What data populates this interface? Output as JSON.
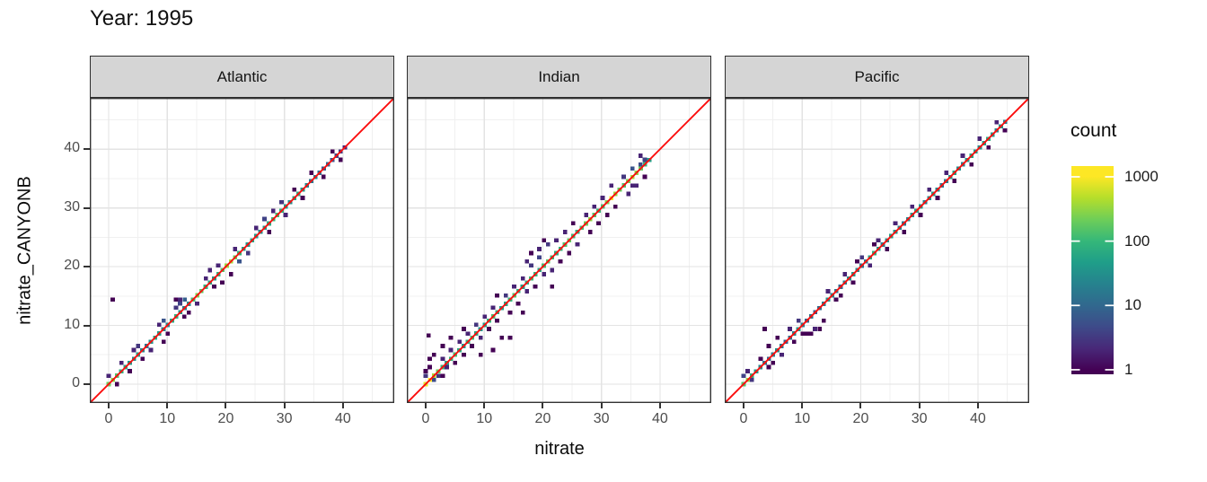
{
  "title": "Year: 1995",
  "facets": [
    "Atlantic",
    "Indian",
    "Pacific"
  ],
  "axes": {
    "x_label": "nitrate",
    "y_label": "nitrate_CANYONB",
    "x_tick_labels": [
      "0",
      "10",
      "20",
      "30",
      "40"
    ],
    "y_tick_labels": [
      "0",
      "10",
      "20",
      "30",
      "40"
    ],
    "x_tick_values": [
      0,
      10,
      20,
      30,
      40
    ],
    "y_tick_values": [
      0,
      10,
      20,
      30,
      40
    ],
    "minor_tick_values": [
      5,
      15,
      25,
      35,
      45
    ]
  },
  "legend": {
    "title": "count",
    "tick_labels": [
      "1000",
      "100",
      "10",
      "1"
    ],
    "tick_values": [
      1000,
      100,
      10,
      1
    ]
  },
  "colors": {
    "reference_line": "#fb0d0d",
    "strip_fill": "#d5d5d5",
    "strip_border": "#2e2e2e",
    "panel_border": "#333333",
    "grid_major": "#e3e3e3",
    "grid_minor": "#f0f0f0",
    "axis_text": "#4d4d4d",
    "viridis": [
      "#440154",
      "#482878",
      "#3e4a89",
      "#31688e",
      "#26828e",
      "#1f9e89",
      "#35b779",
      "#6ece58",
      "#b5de2b",
      "#fde725"
    ]
  },
  "chart_data": {
    "type": "heatmap",
    "subtype": "2d-binned scatter (geom_bin2d) with identity reference line, faceted by ocean",
    "title": "Year: 1995",
    "xlabel": "nitrate",
    "ylabel": "nitrate_CANYONB",
    "xlim": [
      -3.22,
      48.75
    ],
    "ylim": [
      -3.22,
      48.75
    ],
    "x_ticks": [
      0,
      10,
      20,
      30,
      40
    ],
    "y_ticks": [
      0,
      10,
      20,
      30,
      40
    ],
    "grid": true,
    "legend_position": "right",
    "bin_width": 0.72,
    "color_scale": {
      "palette": "viridis",
      "trans": "log10",
      "domain": [
        1,
        1000
      ],
      "title": "count"
    },
    "reference_line": {
      "type": "identity y=x",
      "color": "red"
    },
    "facets": [
      {
        "name": "Atlantic",
        "diag_start": 0,
        "diag_step": 0.72,
        "diag_counts": [
          200,
          300,
          150,
          80,
          60,
          40,
          30,
          50,
          25,
          15,
          35,
          60,
          45,
          20,
          25,
          70,
          90,
          40,
          18,
          30,
          120,
          250,
          180,
          90,
          60,
          40,
          80,
          150,
          350,
          400,
          200,
          90,
          50,
          35,
          60,
          45,
          30,
          40,
          70,
          100,
          120,
          80,
          45,
          30,
          55,
          70,
          40,
          25,
          15,
          20,
          12,
          8,
          10,
          6,
          4,
          3,
          2
        ],
        "scatter_bins": [
          [
            0,
            1.4,
            2
          ],
          [
            1.4,
            0,
            1
          ],
          [
            0.7,
            14.4,
            1
          ],
          [
            2.2,
            3.6,
            2
          ],
          [
            3.6,
            2.2,
            1
          ],
          [
            4.3,
            5.8,
            2
          ],
          [
            5,
            6.5,
            3
          ],
          [
            5.8,
            4.3,
            1
          ],
          [
            7.2,
            5.8,
            2
          ],
          [
            8.6,
            10.1,
            2
          ],
          [
            9.4,
            7.2,
            1
          ],
          [
            9.4,
            10.8,
            6
          ],
          [
            10.1,
            8.6,
            1
          ],
          [
            11.5,
            13,
            3
          ],
          [
            11.5,
            14.4,
            1
          ],
          [
            12.2,
            13.7,
            4
          ],
          [
            12.2,
            14.4,
            2
          ],
          [
            12.9,
            11.5,
            1
          ],
          [
            13,
            14.4,
            8
          ],
          [
            13.7,
            12.2,
            1
          ],
          [
            15.1,
            13.7,
            2
          ],
          [
            16.6,
            18,
            2
          ],
          [
            17.3,
            19.4,
            2
          ],
          [
            18,
            16.6,
            1
          ],
          [
            18.7,
            20.2,
            2
          ],
          [
            19.4,
            17.3,
            1
          ],
          [
            20.9,
            18.7,
            1
          ],
          [
            21.6,
            23,
            2
          ],
          [
            22.3,
            20.9,
            6
          ],
          [
            23.8,
            22.3,
            3
          ],
          [
            25.2,
            26.6,
            2
          ],
          [
            26.6,
            28.1,
            4
          ],
          [
            27.4,
            25.9,
            1
          ],
          [
            28.1,
            29.5,
            2
          ],
          [
            29.5,
            31,
            3
          ],
          [
            30.2,
            28.8,
            2
          ],
          [
            31.7,
            33.1,
            1
          ],
          [
            33.1,
            31.7,
            1
          ],
          [
            34.6,
            36,
            1
          ],
          [
            36.7,
            35.3,
            1
          ],
          [
            38.2,
            39.6,
            1
          ],
          [
            39.6,
            38.2,
            1
          ]
        ]
      },
      {
        "name": "Indian",
        "diag_start": 0,
        "diag_step": 0.72,
        "diag_counts": [
          800,
          1000,
          400,
          200,
          100,
          60,
          90,
          120,
          70,
          40,
          80,
          110,
          60,
          35,
          50,
          90,
          130,
          70,
          45,
          60,
          100,
          150,
          80,
          50,
          70,
          110,
          90,
          60,
          120,
          160,
          100,
          70,
          90,
          140,
          180,
          110,
          80,
          120,
          200,
          300,
          150,
          100,
          130,
          250,
          900,
          350,
          200,
          150,
          250,
          400,
          300,
          200,
          100,
          50
        ],
        "scatter_bins": [
          [
            0,
            1.4,
            3
          ],
          [
            0,
            2.2,
            1
          ],
          [
            0.7,
            2.9,
            1
          ],
          [
            1.4,
            0.7,
            5
          ],
          [
            2.2,
            1.4,
            3
          ],
          [
            2.9,
            1.4,
            1
          ],
          [
            0.7,
            4.3,
            1
          ],
          [
            1.4,
            5,
            1
          ],
          [
            0.5,
            8.3,
            1
          ],
          [
            2.9,
            4.3,
            2
          ],
          [
            3.6,
            2.9,
            2
          ],
          [
            2.9,
            6.5,
            1
          ],
          [
            4.3,
            5.8,
            2
          ],
          [
            4.3,
            7.9,
            1
          ],
          [
            5,
            3.6,
            1
          ],
          [
            5.8,
            7.2,
            2
          ],
          [
            6.5,
            5,
            1
          ],
          [
            6.5,
            9.4,
            1
          ],
          [
            7.2,
            8.6,
            2
          ],
          [
            7.9,
            6.5,
            1
          ],
          [
            8.6,
            10.1,
            3
          ],
          [
            9.4,
            7.9,
            2
          ],
          [
            9.4,
            5,
            1
          ],
          [
            10.1,
            11.5,
            2
          ],
          [
            10.8,
            9.4,
            1
          ],
          [
            11.5,
            5.8,
            1
          ],
          [
            11.5,
            13,
            2
          ],
          [
            12.2,
            10.8,
            1
          ],
          [
            12.2,
            15.1,
            1
          ],
          [
            13,
            7.9,
            1
          ],
          [
            13.7,
            15.1,
            3
          ],
          [
            14.4,
            7.9,
            1
          ],
          [
            14.4,
            12.2,
            1
          ],
          [
            15.1,
            16.6,
            2
          ],
          [
            15.8,
            13.7,
            1
          ],
          [
            16.6,
            18,
            2
          ],
          [
            16.6,
            12.2,
            1
          ],
          [
            17.3,
            15.8,
            2
          ],
          [
            17.3,
            20.9,
            2
          ],
          [
            18,
            20.2,
            3
          ],
          [
            18,
            22.3,
            1
          ],
          [
            18.7,
            16.6,
            1
          ],
          [
            19.4,
            21.6,
            4
          ],
          [
            19.4,
            23,
            2
          ],
          [
            20.2,
            18.7,
            2
          ],
          [
            20.2,
            24.5,
            1
          ],
          [
            20.9,
            23.8,
            3
          ],
          [
            21.6,
            19.4,
            2
          ],
          [
            21.6,
            16.6,
            1
          ],
          [
            22.3,
            24.5,
            2
          ],
          [
            23,
            20.9,
            1
          ],
          [
            23.8,
            25.9,
            2
          ],
          [
            24.5,
            22.3,
            1
          ],
          [
            25.2,
            27.4,
            1
          ],
          [
            25.9,
            23.8,
            2
          ],
          [
            27.4,
            28.8,
            2
          ],
          [
            28.1,
            25.9,
            1
          ],
          [
            28.8,
            30.2,
            2
          ],
          [
            29.5,
            27.4,
            1
          ],
          [
            30.2,
            31.7,
            2
          ],
          [
            31,
            28.8,
            1
          ],
          [
            31.7,
            33.8,
            2
          ],
          [
            32.4,
            30.2,
            1
          ],
          [
            33.8,
            35.3,
            3
          ],
          [
            34.6,
            32.4,
            2
          ],
          [
            35.3,
            36.7,
            6
          ],
          [
            35.3,
            33.8,
            2
          ],
          [
            36,
            33.8,
            2
          ],
          [
            36.7,
            38.9,
            2
          ],
          [
            36.7,
            37.4,
            5
          ],
          [
            37.4,
            35.3,
            1
          ],
          [
            37.4,
            38.2,
            4
          ]
        ]
      },
      {
        "name": "Pacific",
        "diag_start": 0,
        "diag_step": 0.72,
        "diag_counts": [
          150,
          300,
          80,
          40,
          25,
          15,
          10,
          20,
          30,
          15,
          8,
          12,
          25,
          40,
          20,
          10,
          15,
          8,
          12,
          20,
          35,
          25,
          15,
          10,
          20,
          30,
          40,
          25,
          15,
          20,
          60,
          80,
          40,
          20,
          30,
          50,
          35,
          20,
          15,
          25,
          40,
          60,
          35,
          20,
          30,
          45,
          25,
          15,
          20,
          35,
          55,
          30,
          20,
          40,
          60,
          45,
          30,
          50,
          70,
          40,
          25,
          35,
          20
        ],
        "scatter_bins": [
          [
            0,
            1.4,
            4
          ],
          [
            0.7,
            2.2,
            2
          ],
          [
            1.4,
            0.7,
            3
          ],
          [
            2.9,
            4.3,
            1
          ],
          [
            3.6,
            9.4,
            1
          ],
          [
            4.3,
            2.9,
            1
          ],
          [
            4.3,
            6.5,
            1
          ],
          [
            5,
            3.6,
            1
          ],
          [
            5.8,
            7.9,
            1
          ],
          [
            6.5,
            5,
            2
          ],
          [
            7.9,
            9.4,
            2
          ],
          [
            8.6,
            7.2,
            1
          ],
          [
            9.4,
            10.8,
            3
          ],
          [
            10.1,
            8.6,
            1
          ],
          [
            10.8,
            8.6,
            1
          ],
          [
            11.5,
            8.6,
            1
          ],
          [
            12.2,
            9.4,
            2
          ],
          [
            13,
            9.4,
            1
          ],
          [
            13.7,
            10.8,
            1
          ],
          [
            14.4,
            15.8,
            2
          ],
          [
            15.8,
            14.4,
            1
          ],
          [
            16.6,
            15.1,
            1
          ],
          [
            17.3,
            18.7,
            2
          ],
          [
            18.7,
            17.3,
            1
          ],
          [
            19.4,
            20.9,
            1
          ],
          [
            20.2,
            21.6,
            3
          ],
          [
            21.6,
            20.2,
            2
          ],
          [
            22.3,
            23.8,
            1
          ],
          [
            23,
            24.5,
            2
          ],
          [
            24.5,
            23,
            1
          ],
          [
            25.9,
            27.4,
            2
          ],
          [
            27.4,
            25.9,
            1
          ],
          [
            28.8,
            30.2,
            2
          ],
          [
            30.2,
            28.8,
            1
          ],
          [
            31.7,
            33.1,
            2
          ],
          [
            33.1,
            31.7,
            1
          ],
          [
            34.6,
            36,
            2
          ],
          [
            36,
            34.6,
            1
          ],
          [
            37.4,
            38.9,
            2
          ],
          [
            38.9,
            37.4,
            1
          ],
          [
            40.3,
            41.8,
            2
          ],
          [
            41.8,
            40.3,
            1
          ],
          [
            43.2,
            44.6,
            2
          ],
          [
            44.6,
            43.2,
            1
          ]
        ]
      }
    ]
  }
}
